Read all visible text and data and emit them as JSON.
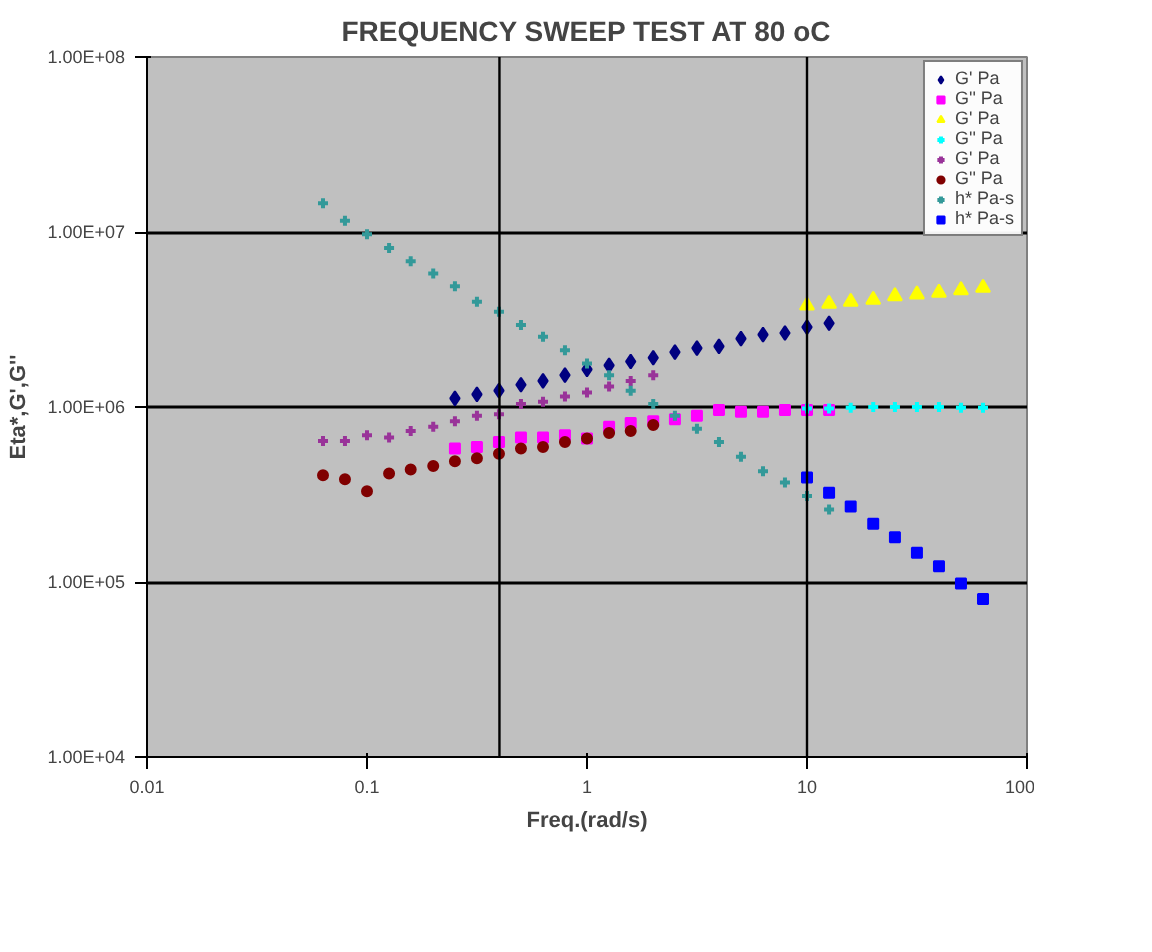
{
  "chart_data": {
    "type": "scatter",
    "title": "FREQUENCY SWEEP TEST AT 80 oC",
    "xlabel": "Freq.(rad/s)",
    "ylabel": "Eta*,G',G''",
    "log": "xy",
    "grid": "y",
    "legend": "top right",
    "xlim": [
      0.01,
      100
    ],
    "xticks": [
      0.01,
      0.1,
      1,
      10,
      100
    ],
    "ylim": [
      10000,
      100000000
    ],
    "yticks": [
      {
        "value": 10000,
        "label": "1.00E+04"
      },
      {
        "value": 100000,
        "label": "1.00E+05"
      },
      {
        "value": 1000000,
        "label": "1.00E+06"
      },
      {
        "value": 10000000,
        "label": "1.00E+07"
      },
      {
        "value": 100000000,
        "label": "1.00E+08"
      }
    ],
    "ref_lines": [
      {
        "axis": "x",
        "value": 0.4,
        "color": "#000000"
      },
      {
        "axis": "x",
        "value": 10,
        "color": "#000000"
      }
    ],
    "series": [
      {
        "name": "G' Pa",
        "color": "#000080",
        "marker": "diamond",
        "x": [
          0.251,
          0.316,
          0.398,
          0.501,
          0.631,
          0.794,
          1.0,
          1.26,
          1.58,
          2.0,
          2.51,
          3.16,
          3.98,
          5.01,
          6.31,
          7.94,
          10.0,
          12.6
        ],
        "values": [
          1120000,
          1180000,
          1240000,
          1340000,
          1410000,
          1520000,
          1640000,
          1730000,
          1820000,
          1910000,
          2060000,
          2170000,
          2220000,
          2460000,
          2590000,
          2650000,
          2860000,
          3010000
        ]
      },
      {
        "name": "G'' Pa",
        "color": "#ff00ff",
        "marker": "square",
        "x": [
          0.251,
          0.316,
          0.398,
          0.501,
          0.631,
          0.794,
          1.0,
          1.26,
          1.58,
          2.0,
          2.51,
          3.16,
          3.98,
          5.01,
          6.31,
          7.94,
          10.0,
          12.6
        ],
        "values": [
          580000,
          590000,
          630000,
          670000,
          670000,
          690000,
          660000,
          770000,
          810000,
          830000,
          850000,
          890000,
          960000,
          940000,
          940000,
          960000,
          960000,
          960000
        ]
      },
      {
        "name": "G' Pa",
        "color": "#ffff00",
        "marker": "triangle",
        "x": [
          10.0,
          12.6,
          15.8,
          20.0,
          25.1,
          31.6,
          39.8,
          50.1,
          63.1
        ],
        "values": [
          3800000,
          3890000,
          3990000,
          4100000,
          4300000,
          4400000,
          4500000,
          4650000,
          4800000
        ]
      },
      {
        "name": "G'' Pa",
        "color": "#00ffff",
        "marker": "cross",
        "x": [
          10.0,
          12.6,
          15.8,
          20.0,
          25.1,
          31.6,
          39.8,
          50.1,
          63.1
        ],
        "values": [
          980000,
          980000,
          990000,
          1000000,
          1000000,
          1000000,
          1000000,
          990000,
          990000
        ]
      },
      {
        "name": "G' Pa",
        "color": "#993399",
        "marker": "cross",
        "x": [
          0.0631,
          0.0794,
          0.1,
          0.126,
          0.158,
          0.2,
          0.251,
          0.316,
          0.398,
          0.501,
          0.631,
          0.794,
          1.0,
          1.26,
          1.58,
          2.0
        ],
        "values": [
          640000,
          640000,
          690000,
          670000,
          730000,
          770000,
          830000,
          890000,
          910000,
          1040000,
          1070000,
          1150000,
          1210000,
          1310000,
          1410000,
          1520000
        ]
      },
      {
        "name": "G'' Pa",
        "color": "#800000",
        "marker": "circle",
        "x": [
          0.0631,
          0.0794,
          0.1,
          0.126,
          0.158,
          0.2,
          0.251,
          0.316,
          0.398,
          0.501,
          0.631,
          0.794,
          1.0,
          1.26,
          1.58,
          2.0
        ],
        "values": [
          407000,
          386000,
          330000,
          417000,
          440000,
          460000,
          490000,
          510000,
          540000,
          580000,
          590000,
          630000,
          660000,
          710000,
          730000,
          790000
        ]
      },
      {
        "name": "h* Pa-s",
        "color": "#339999",
        "marker": "cross",
        "x": [
          0.0631,
          0.0794,
          0.1,
          0.126,
          0.158,
          0.2,
          0.251,
          0.316,
          0.398,
          0.501,
          0.631,
          0.794,
          1.0,
          1.26,
          1.58,
          2.0,
          2.51,
          3.16,
          3.98,
          5.01,
          6.31,
          7.94,
          10.0,
          12.6
        ],
        "values": [
          14600000,
          11600000,
          9700000,
          8100000,
          6800000,
          5800000,
          4900000,
          4000000,
          3500000,
          2940000,
          2520000,
          2110000,
          1770000,
          1520000,
          1240000,
          1040000,
          890000,
          750000,
          630000,
          520000,
          430000,
          370000,
          310000,
          260000
        ]
      },
      {
        "name": "h* Pa-s",
        "color": "#0000ff",
        "marker": "square",
        "x": [
          10.0,
          12.6,
          15.8,
          20.0,
          25.1,
          31.6,
          39.8,
          50.1,
          63.1
        ],
        "values": [
          396000,
          324000,
          270000,
          215000,
          180000,
          147000,
          123000,
          98000,
          80000
        ]
      }
    ]
  }
}
